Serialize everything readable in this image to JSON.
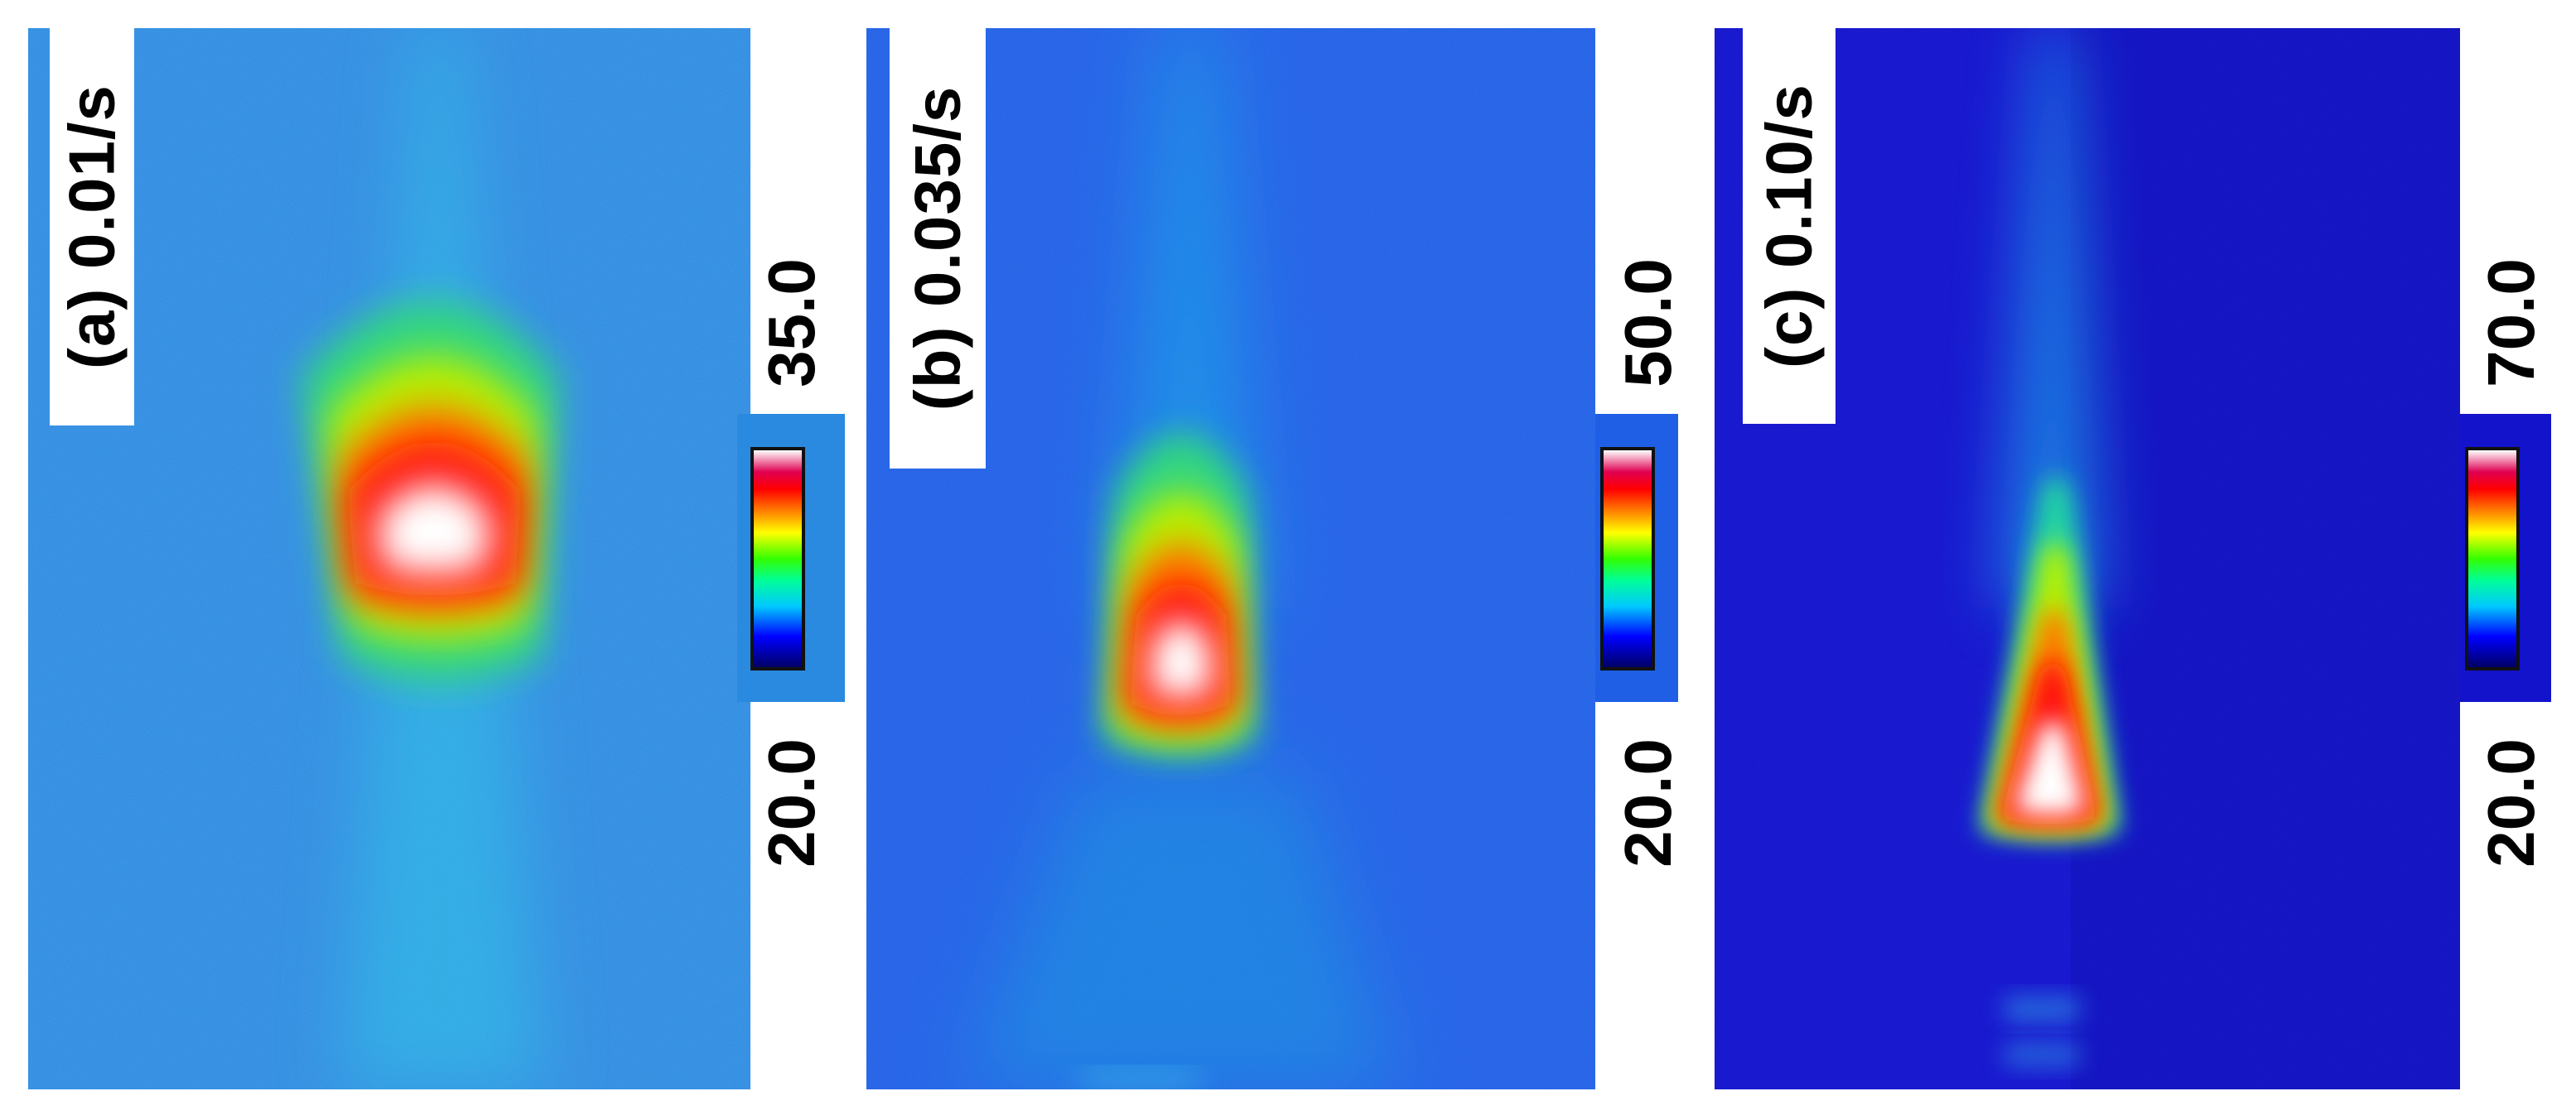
{
  "panels": [
    {
      "id": "a",
      "label": "(a) 0.01/s",
      "scale_max": "35.0",
      "scale_min": "20.0",
      "background_color": "#2a8ae0"
    },
    {
      "id": "b",
      "label": "(b) 0.035/s",
      "scale_max": "50.0",
      "scale_min": "20.0",
      "background_color": "#1f5fe6"
    },
    {
      "id": "c",
      "label": "(c) 0.10/s",
      "scale_max": "70.0",
      "scale_min": "20.0",
      "background_color": "#1313cc"
    }
  ],
  "colormap": [
    "#000066",
    "#0000ff",
    "#00c8ff",
    "#00ff99",
    "#33ff00",
    "#ffff00",
    "#ff8000",
    "#ff0000",
    "#ffffff"
  ]
}
